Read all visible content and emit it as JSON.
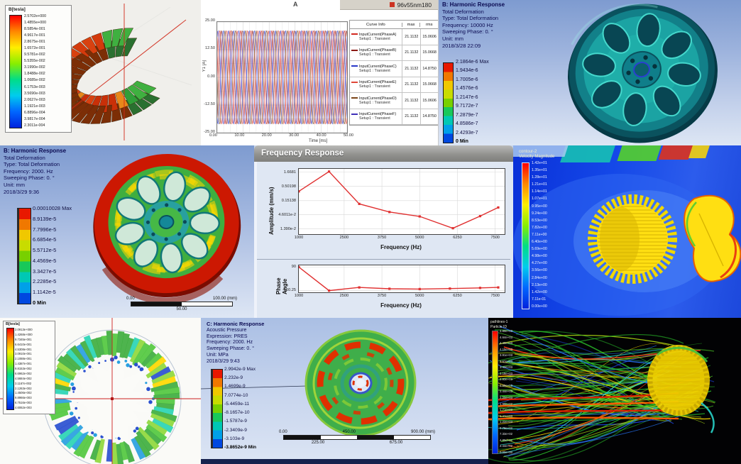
{
  "palettes": {
    "ansys_bands": [
      "#e81800",
      "#f07800",
      "#f0c800",
      "#c8dc00",
      "#78d000",
      "#18c85a",
      "#00c8b4",
      "#00a0e8",
      "#0048e0"
    ],
    "rainbow": [
      "#ff0000",
      "#ff8800",
      "#ffee00",
      "#88ee00",
      "#00dd88",
      "#00ccee",
      "#0066ff",
      "#0022dd"
    ],
    "stream_colors": [
      "#28b428",
      "#50dc28",
      "#b4e114",
      "#ffdc00",
      "#28d2c8",
      "#2878ff",
      "#1e46e6",
      "#ff3c14"
    ]
  },
  "panels": {
    "maxwell_torus": {
      "legend_title": "B[tesla]",
      "legend_values": [
        "2.5702e+000",
        "1.4855e+000",
        "8.5854e-001",
        "4.9617e-001",
        "2.8675e-001",
        "1.6572e-001",
        "9.5781e-002",
        "5.5355e-002",
        "3.1990e-002",
        "1.8488e-002",
        "1.0685e-002",
        "6.1753e-003",
        "3.5690e-003",
        "2.0627e-003",
        "1.1921e-003",
        "6.8896e-004",
        "3.9817e-004",
        "2.3011e-004"
      ]
    },
    "current_plot": {
      "window_label": "96v55nm180",
      "plot_marker": "A",
      "table_headers": [
        "Curve Info",
        "max",
        "rms"
      ]
    },
    "harm_top": {
      "title": "B: Harmonic Response",
      "lines": [
        "Total Deformation",
        "Type: Total Deformation",
        "Frequency: 10000 Hz",
        "Sweeping Phase: 0. °",
        "Unit: mm",
        "2018/3/28 22:09"
      ],
      "legend": [
        "2.1864e-6 Max",
        "1.9434e-6",
        "1.7005e-6",
        "1.4576e-6",
        "1.2147e-6",
        "9.7172e-7",
        "7.2879e-7",
        "4.8586e-7",
        "2.4293e-7",
        "0 Min"
      ]
    },
    "harm_left": {
      "title": "B: Harmonic Response",
      "lines": [
        "Total Deformation",
        "Type: Total Deformation",
        "Frequency: 2000. Hz",
        "Sweeping Phase: 0. °",
        "Unit: mm",
        "2018/3/29 9:36"
      ],
      "legend": [
        "0.00010028 Max",
        "8.9139e-5",
        "7.7996e-5",
        "6.6854e-5",
        "5.5712e-5",
        "4.4569e-5",
        "3.3427e-5",
        "2.2285e-5",
        "1.1142e-5",
        "0 Min"
      ],
      "ruler_top": [
        "0.00",
        "100.00 (mm)"
      ],
      "ruler_bottom": [
        "50.00"
      ]
    },
    "freq_response": {
      "window_title": "Frequency Response",
      "amp_ylabel": "Amplitude (mm/s)",
      "phase_ylabel": "Phase Angle",
      "xlabel": "Frequency (Hz)"
    },
    "cfd_velocity": {
      "title_lines": [
        "contour-2",
        "Velocity Magnitude"
      ],
      "legend_values": [
        "1.42e+01",
        "1.35e+01",
        "1.28e+01",
        "1.21e+01",
        "1.14e+01",
        "1.07e+01",
        "9.95e+00",
        "9.24e+00",
        "8.53e+00",
        "7.82e+00",
        "7.11e+00",
        "6.40e+00",
        "5.69e+00",
        "4.98e+00",
        "4.27e+00",
        "3.56e+00",
        "2.84e+00",
        "2.13e+00",
        "1.42e+00",
        "7.11e-01",
        "0.00e+00"
      ]
    },
    "maxwell_polar": {
      "legend_title": "B[tesla]",
      "legend_values": [
        "2.0913e+000",
        "1.4268e+000",
        "9.7345e-001",
        "6.6410e-001",
        "4.5308e-001",
        "3.0910e-001",
        "2.1088e-001",
        "1.4387e-001",
        "9.8153e-002",
        "6.6962e-002",
        "4.5684e-002",
        "3.1167e-002",
        "2.1263e-002",
        "1.4506e-002",
        "9.8966e-003",
        "6.7516e-003",
        "4.6062e-003"
      ]
    },
    "acoustic": {
      "title": "C: Harmonic Response",
      "lines": [
        "Acoustic Pressure",
        "Expression: PRES",
        "Frequency: 2000. Hz",
        "Sweeping Phase: 0. °",
        "Unit: MPa",
        "2018/3/29 9:43"
      ],
      "legend": [
        "2.9942e-9 Max",
        "2.232e-9",
        "1.4699e-9",
        "7.0774e-10",
        "-5.4459e-11",
        "-8.1657e-10",
        "-1.5787e-9",
        "-2.3409e-9",
        "-3.103e-9",
        "-3.8652e-9 Min"
      ],
      "ruler_top": [
        "0.00",
        "450.00",
        "900.00 (mm)"
      ],
      "ruler_bottom": [
        "225.00",
        "675.00"
      ]
    },
    "pathlines": {
      "title_lines": [
        "pathlines-1",
        "Particle ID"
      ],
      "legend_values": [
        "4.89e+03",
        "4.64e+03",
        "4.40e+03",
        "4.15e+03",
        "3.91e+03",
        "3.67e+03",
        "3.42e+03",
        "3.18e+03",
        "2.93e+03",
        "2.69e+03",
        "2.44e+03",
        "2.20e+03",
        "1.96e+03",
        "1.71e+03",
        "1.47e+03",
        "1.22e+03",
        "9.78e+02",
        "7.33e+02",
        "4.89e+02",
        "2.44e+02",
        "0.00e+00"
      ]
    }
  },
  "chart_data": [
    {
      "type": "line",
      "title": "96v55nm180",
      "xlabel": "Time [ms]",
      "ylabel": "Y1 [A]",
      "xlim": [
        0,
        50
      ],
      "ylim": [
        -25,
        25
      ],
      "xticks": [
        "0.00",
        "10.00",
        "20.00",
        "30.00",
        "40.00",
        "50.00"
      ],
      "yticks": [
        "25.00",
        "12.50",
        "0.00",
        "-12.50",
        "-25.00"
      ],
      "amplitude": 21.1132,
      "period_ms": 4,
      "series": [
        {
          "name": "InputCurrent(PhaseA)",
          "setup": "Setup1 : Transient",
          "phase_deg": 0,
          "max": "21.1132",
          "rms": "15.0606",
          "color": "#d22820"
        },
        {
          "name": "InputCurrent(PhaseB)",
          "setup": "Setup1 : Transient",
          "phase_deg": -60,
          "max": "21.1132",
          "rms": "15.0668",
          "color": "#8c1a14"
        },
        {
          "name": "InputCurrent(PhaseC)",
          "setup": "Setup1 : Transient",
          "phase_deg": -120,
          "max": "21.1132",
          "rms": "14.8750",
          "color": "#2838c8"
        },
        {
          "name": "InputCurrent(PhaseE)",
          "setup": "Setup1 : Transient",
          "phase_deg": -240,
          "max": "21.1132",
          "rms": "15.0668",
          "color": "#e04838"
        },
        {
          "name": "InputCurrent(PhaseD)",
          "setup": "Setup1 : Transient",
          "phase_deg": -180,
          "max": "21.1132",
          "rms": "15.0606",
          "color": "#7a4418"
        },
        {
          "name": "InputCurrent(PhaseF)",
          "setup": "Setup1 : Transient",
          "phase_deg": -300,
          "max": "21.1132",
          "rms": "14.8750",
          "color": "#4030b8"
        }
      ]
    },
    {
      "type": "line",
      "title": "Frequency Response - Amplitude",
      "xlabel": "Frequency (Hz)",
      "ylabel": "Amplitude (mm/s)",
      "yscale": "log",
      "xlim": [
        1000,
        7812
      ],
      "ylim": [
        0.009,
        2.2
      ],
      "xtick_values": [
        1000,
        2500,
        3750,
        5000,
        6250,
        7500
      ],
      "xtick_labels": [
        "1000",
        "2500",
        "3750",
        "5000",
        "6250",
        "7500"
      ],
      "ytick_values": [
        1.6681,
        0.50198,
        0.15138,
        0.046011,
        0.0139
      ],
      "ytick_labels": [
        "1.6681",
        "0.50198",
        "0.15138",
        "4.6011e-2",
        "1.390e-2"
      ],
      "x": [
        1000,
        2000,
        3000,
        4000,
        5000,
        6100,
        7000,
        7600
      ],
      "y": [
        0.33,
        1.75,
        0.115,
        0.058,
        0.04,
        0.0148,
        0.041,
        0.085
      ],
      "color": "#e03030"
    },
    {
      "type": "line",
      "title": "Frequency Response - Phase",
      "xlabel": "Frequency (Hz)",
      "ylabel": "Phase Angle",
      "xlim": [
        1000,
        7812
      ],
      "ylim": [
        -180,
        108
      ],
      "xtick_values": [
        1000,
        2500,
        3750,
        5000,
        6250,
        7500
      ],
      "xtick_labels": [
        "1000",
        "2500",
        "3750",
        "5000",
        "6250",
        "7500"
      ],
      "ytick_values": [
        90,
        -160.25
      ],
      "ytick_labels": [
        "90",
        "-160.25"
      ],
      "x": [
        1000,
        2000,
        3000,
        4000,
        5000,
        6000,
        7000,
        7600
      ],
      "y": [
        90,
        -162,
        -128,
        -142,
        -145,
        -140,
        -133,
        -128
      ],
      "color": "#e03030"
    }
  ]
}
